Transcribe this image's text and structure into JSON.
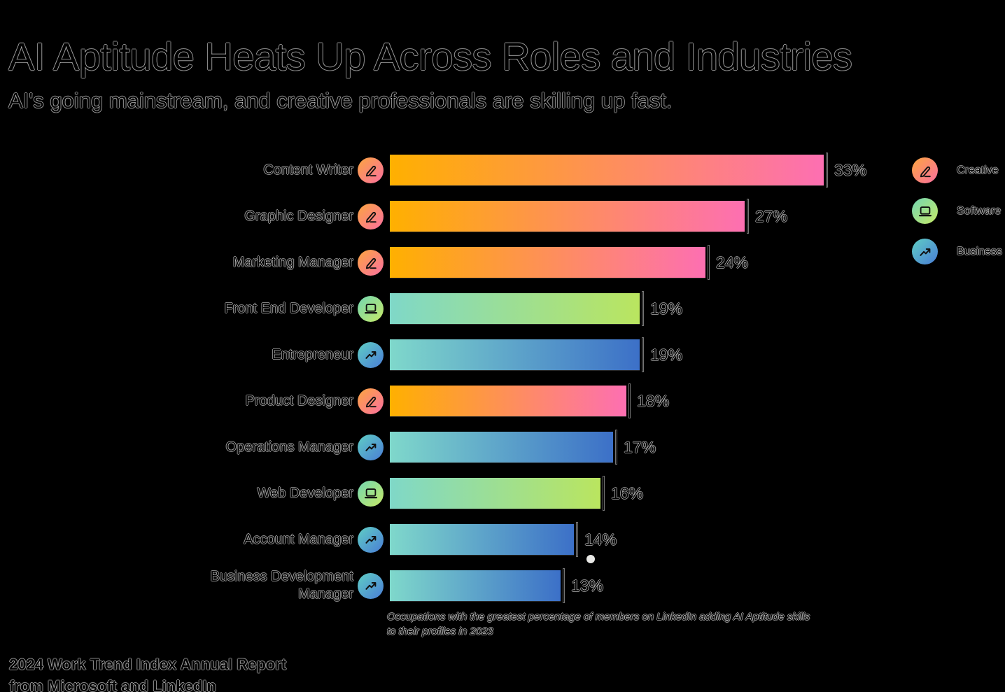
{
  "header": {
    "title": "AI Aptitude Heats Up Across Roles and Industries",
    "subtitle": "AI's going mainstream, and creative professionals are skilling up fast."
  },
  "chart_data": {
    "type": "bar",
    "orientation": "horizontal",
    "title": "AI Aptitude Heats Up Across Roles and Industries",
    "categories": [
      "Content Writer",
      "Graphic Designer",
      "Marketing Manager",
      "Front End Developer",
      "Entrepreneur",
      "Product Designer",
      "Operations Manager",
      "Web Developer",
      "Account Manager",
      "Business Development Manager"
    ],
    "values": [
      33,
      27,
      24,
      19,
      19,
      18,
      17,
      16,
      14,
      13
    ],
    "value_labels": [
      "33%",
      "27%",
      "24%",
      "19%",
      "19%",
      "18%",
      "17%",
      "16%",
      "14%",
      "13%"
    ],
    "series_category": [
      "creative",
      "creative",
      "creative",
      "software",
      "business",
      "creative",
      "business",
      "software",
      "business",
      "business"
    ],
    "xlim": [
      0,
      35
    ],
    "grid": false,
    "legend_position": "right"
  },
  "legend": {
    "items": [
      {
        "label": "Creative",
        "icon": "pencil-icon",
        "category": "creative"
      },
      {
        "label": "Software",
        "icon": "laptop-icon",
        "category": "software"
      },
      {
        "label": "Business",
        "icon": "trend-up-icon",
        "category": "business"
      }
    ]
  },
  "footnote": {
    "text": "Occupations with the greatest percentage of members on LinkedIn adding AI Aptitude skills to their profiles in 2023"
  },
  "footer": {
    "line1": "2024 Work Trend Index Annual Report",
    "line2": "from Microsoft and LinkedIn"
  },
  "colors": {
    "background": "#000000",
    "text_outline": "#8A8A8A",
    "bar_gradients": {
      "creative": [
        "#FFB000",
        "#FD6FB2"
      ],
      "software": [
        "#7FD8C8",
        "#BAE55F"
      ],
      "business": [
        "#7FD8CB",
        "#3C70C8"
      ]
    },
    "icon_gradients": {
      "creative": [
        "#FBA53F",
        "#FB6FA0"
      ],
      "software": [
        "#72D6B2",
        "#C6E966"
      ],
      "business": [
        "#5FCEC4",
        "#4A7DD6"
      ]
    }
  }
}
